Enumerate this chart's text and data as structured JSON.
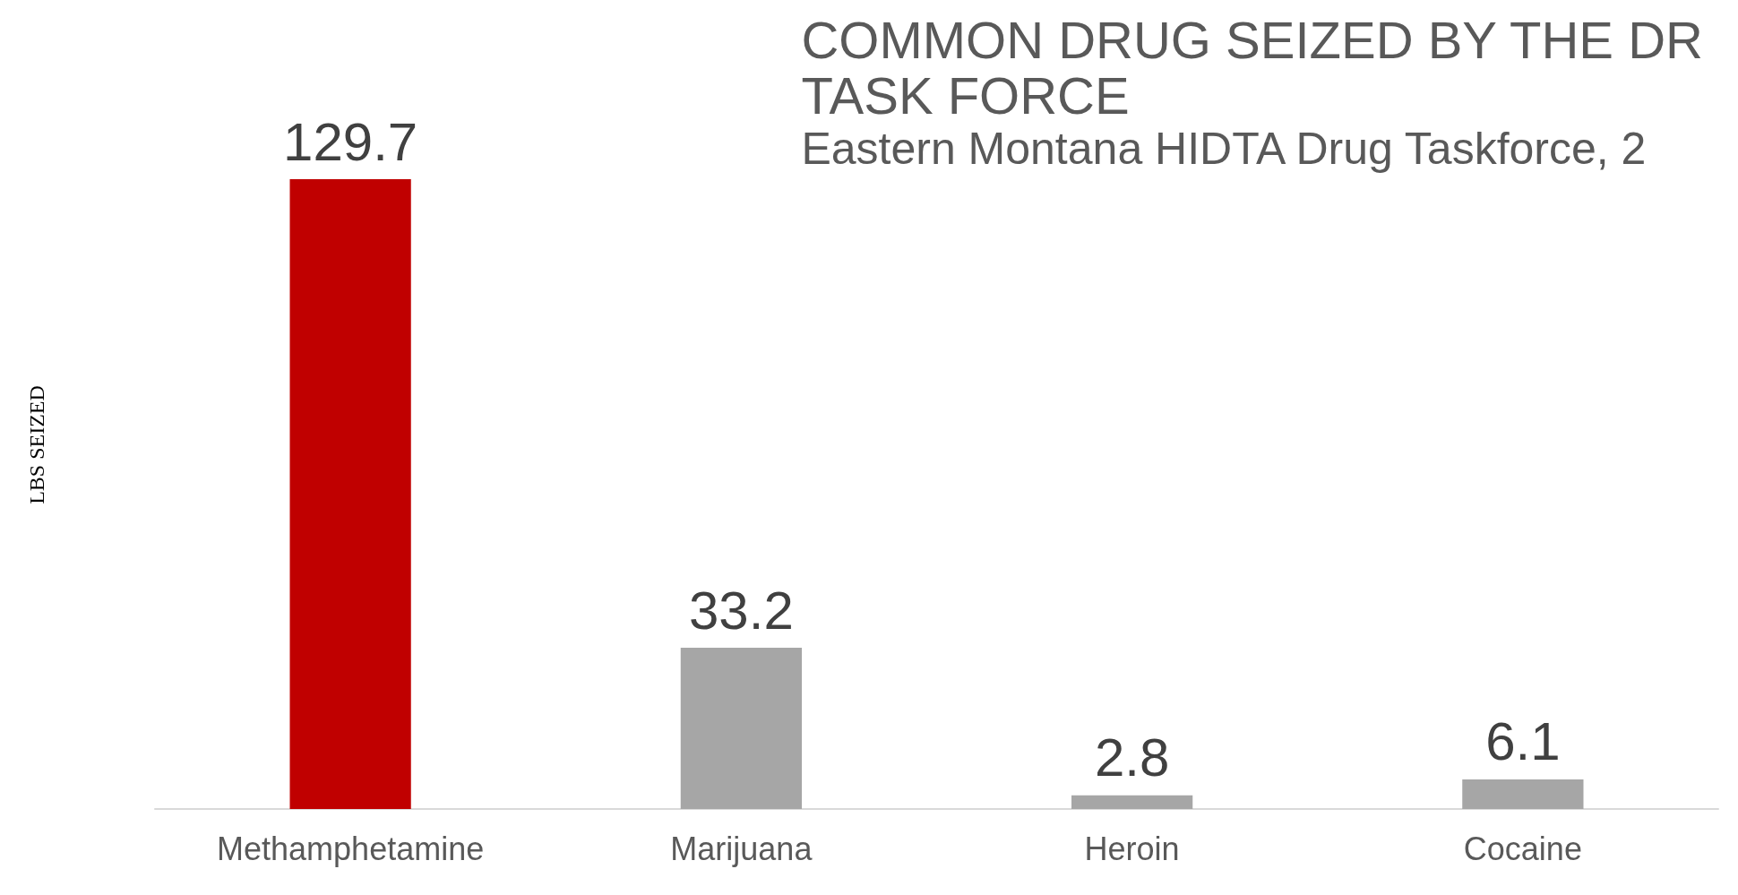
{
  "chart_data": {
    "type": "bar",
    "title": "COMMON DRUG SEIZED BY THE DR\nTASK FORCE",
    "subtitle": "Eastern Montana HIDTA Drug Taskforce, 2",
    "ylabel": "LBS SEIZED",
    "categories": [
      "Methamphetamine",
      "Marijuana",
      "Heroin",
      "Cocaine"
    ],
    "values": [
      129.7,
      33.2,
      2.8,
      6.1
    ],
    "colors": [
      "#c00000",
      "#a6a6a6",
      "#a6a6a6",
      "#a6a6a6"
    ],
    "data_labels": true
  }
}
